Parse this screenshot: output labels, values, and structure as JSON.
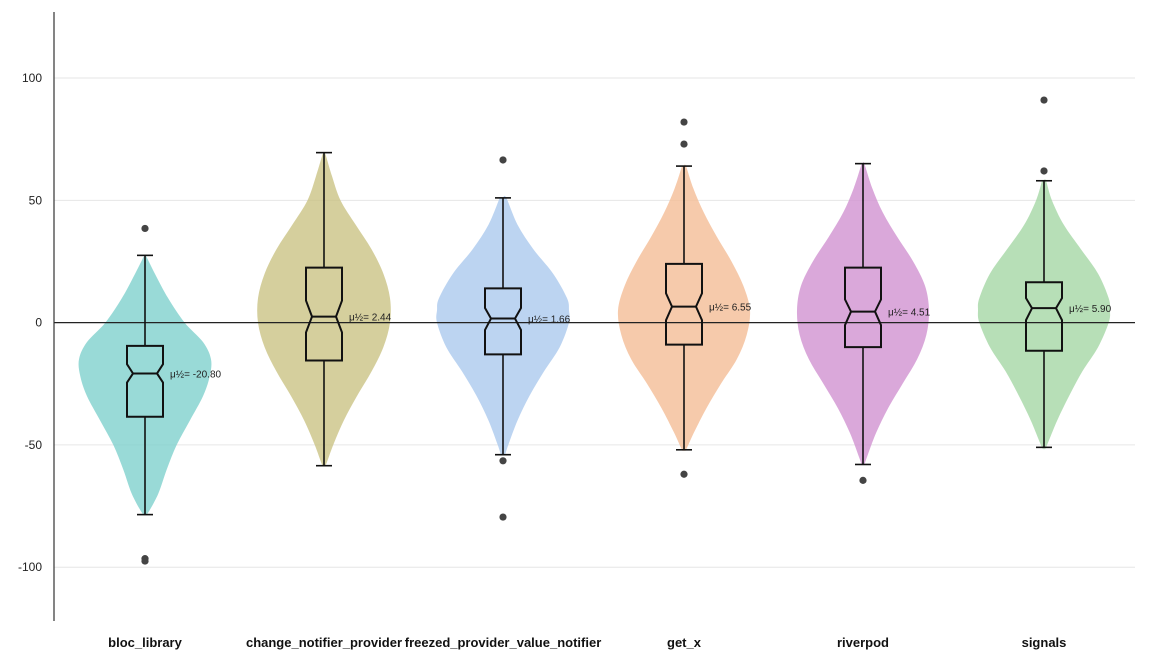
{
  "chart_data": {
    "type": "violin",
    "ylim": [
      -122,
      127
    ],
    "y_ticks": [
      100,
      50,
      0,
      -50,
      -100
    ],
    "y_tick_labels": [
      "100",
      "50",
      "0",
      "-50",
      "-100"
    ],
    "grid": true,
    "zero_line": true,
    "median_prefix": "μ½= ",
    "series": [
      {
        "category": "bloc_library",
        "color": "#7ccfcc",
        "median": -20.8,
        "median_label": "-20.80",
        "q1": -38.5,
        "q3": -9.5,
        "whisker_low": -78.5,
        "whisker_high": 27.5,
        "outliers": [
          38.5,
          -96.5,
          -97.5
        ],
        "notch_low": -24.5,
        "notch_high": -17,
        "violin_profile": [
          [
            27,
            0.02
          ],
          [
            20,
            0.15
          ],
          [
            10,
            0.35
          ],
          [
            0,
            0.6
          ],
          [
            -8,
            0.88
          ],
          [
            -15,
            1.0
          ],
          [
            -22,
            0.98
          ],
          [
            -30,
            0.88
          ],
          [
            -40,
            0.68
          ],
          [
            -50,
            0.48
          ],
          [
            -60,
            0.33
          ],
          [
            -70,
            0.2
          ],
          [
            -78,
            0.04
          ]
        ]
      },
      {
        "category": "change_notifier_provider",
        "color": "#c9c282",
        "median": 2.44,
        "median_label": "2.44",
        "q1": -15.5,
        "q3": 22.5,
        "whisker_low": -58.5,
        "whisker_high": 69.5,
        "outliers": [],
        "notch_low": -4,
        "notch_high": 9,
        "violin_profile": [
          [
            69,
            0.02
          ],
          [
            60,
            0.12
          ],
          [
            50,
            0.25
          ],
          [
            40,
            0.48
          ],
          [
            30,
            0.72
          ],
          [
            20,
            0.9
          ],
          [
            10,
            1.0
          ],
          [
            0,
            1.0
          ],
          [
            -10,
            0.9
          ],
          [
            -20,
            0.72
          ],
          [
            -30,
            0.5
          ],
          [
            -40,
            0.3
          ],
          [
            -50,
            0.14
          ],
          [
            -58,
            0.03
          ]
        ]
      },
      {
        "category": "freezed_provider_value_notifier",
        "color": "#a9c8ed",
        "median": 1.66,
        "median_label": "1.66",
        "q1": -13,
        "q3": 14,
        "whisker_low": -54,
        "whisker_high": 51,
        "outliers": [
          66.5,
          -56.5,
          -79.5
        ],
        "notch_low": -3,
        "notch_high": 6,
        "violin_profile": [
          [
            51,
            0.05
          ],
          [
            40,
            0.22
          ],
          [
            30,
            0.46
          ],
          [
            20,
            0.76
          ],
          [
            10,
            0.97
          ],
          [
            5,
            1.0
          ],
          [
            0,
            1.0
          ],
          [
            -10,
            0.86
          ],
          [
            -20,
            0.62
          ],
          [
            -30,
            0.4
          ],
          [
            -40,
            0.22
          ],
          [
            -50,
            0.08
          ],
          [
            -54,
            0.03
          ]
        ]
      },
      {
        "category": "get_x",
        "color": "#f3bb93",
        "median": 6.55,
        "median_label": "6.55",
        "q1": -9,
        "q3": 24,
        "whisker_low": -52,
        "whisker_high": 64,
        "outliers": [
          82,
          73,
          -62
        ],
        "notch_low": 1,
        "notch_high": 12,
        "violin_profile": [
          [
            64,
            0.03
          ],
          [
            55,
            0.14
          ],
          [
            45,
            0.3
          ],
          [
            35,
            0.5
          ],
          [
            25,
            0.72
          ],
          [
            15,
            0.9
          ],
          [
            5,
            1.0
          ],
          [
            -5,
            0.95
          ],
          [
            -15,
            0.8
          ],
          [
            -25,
            0.56
          ],
          [
            -35,
            0.34
          ],
          [
            -45,
            0.15
          ],
          [
            -52,
            0.03
          ]
        ]
      },
      {
        "category": "riverpod",
        "color": "#cf8fcf",
        "median": 4.51,
        "median_label": "4.51",
        "q1": -10,
        "q3": 22.5,
        "whisker_low": -58,
        "whisker_high": 65,
        "outliers": [
          -64.5
        ],
        "notch_low": -1,
        "notch_high": 9.5,
        "violin_profile": [
          [
            65,
            0.02
          ],
          [
            55,
            0.14
          ],
          [
            45,
            0.3
          ],
          [
            35,
            0.52
          ],
          [
            25,
            0.76
          ],
          [
            15,
            0.94
          ],
          [
            5,
            1.0
          ],
          [
            -5,
            0.96
          ],
          [
            -15,
            0.82
          ],
          [
            -25,
            0.6
          ],
          [
            -35,
            0.38
          ],
          [
            -45,
            0.2
          ],
          [
            -55,
            0.06
          ],
          [
            -58,
            0.02
          ]
        ]
      },
      {
        "category": "signals",
        "color": "#a3d6a3",
        "median": 5.9,
        "median_label": "5.90",
        "q1": -11.5,
        "q3": 16.5,
        "whisker_low": -51,
        "whisker_high": 58,
        "outliers": [
          91,
          62
        ],
        "notch_low": 1,
        "notch_high": 10,
        "violin_profile": [
          [
            58,
            0.03
          ],
          [
            50,
            0.12
          ],
          [
            40,
            0.3
          ],
          [
            30,
            0.56
          ],
          [
            20,
            0.82
          ],
          [
            10,
            0.98
          ],
          [
            5,
            1.0
          ],
          [
            0,
            0.98
          ],
          [
            -10,
            0.82
          ],
          [
            -20,
            0.58
          ],
          [
            -30,
            0.38
          ],
          [
            -40,
            0.2
          ],
          [
            -51,
            0.03
          ]
        ]
      }
    ]
  }
}
